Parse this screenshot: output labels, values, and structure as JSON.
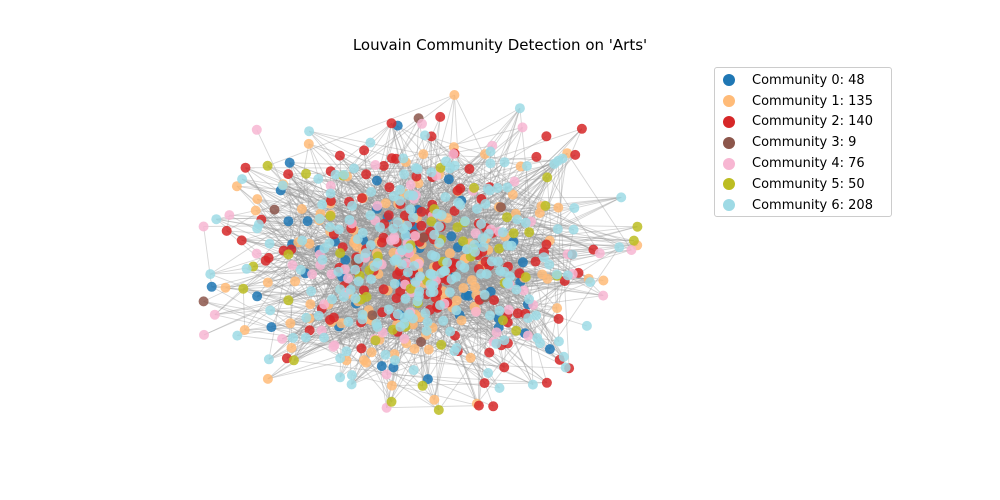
{
  "title": "Louvain Community Detection on 'Arts'",
  "legend": [
    {
      "label": "Community 0: 48",
      "color": "#1f77b4"
    },
    {
      "label": "Community 1: 135",
      "color": "#ffbb78"
    },
    {
      "label": "Community 2: 140",
      "color": "#d62728"
    },
    {
      "label": "Community 3: 9",
      "color": "#8c564b"
    },
    {
      "label": "Community 4: 76",
      "color": "#f7b6d2"
    },
    {
      "label": "Community 5: 50",
      "color": "#bcbd22"
    },
    {
      "label": "Community 6: 208",
      "color": "#9edae5"
    }
  ],
  "communities": [
    {
      "id": 0,
      "count": 48
    },
    {
      "id": 1,
      "count": 135
    },
    {
      "id": 2,
      "count": 140
    },
    {
      "id": 3,
      "count": 9
    },
    {
      "id": 4,
      "count": 76
    },
    {
      "id": 5,
      "count": 50
    },
    {
      "id": 6,
      "count": 208
    }
  ]
}
